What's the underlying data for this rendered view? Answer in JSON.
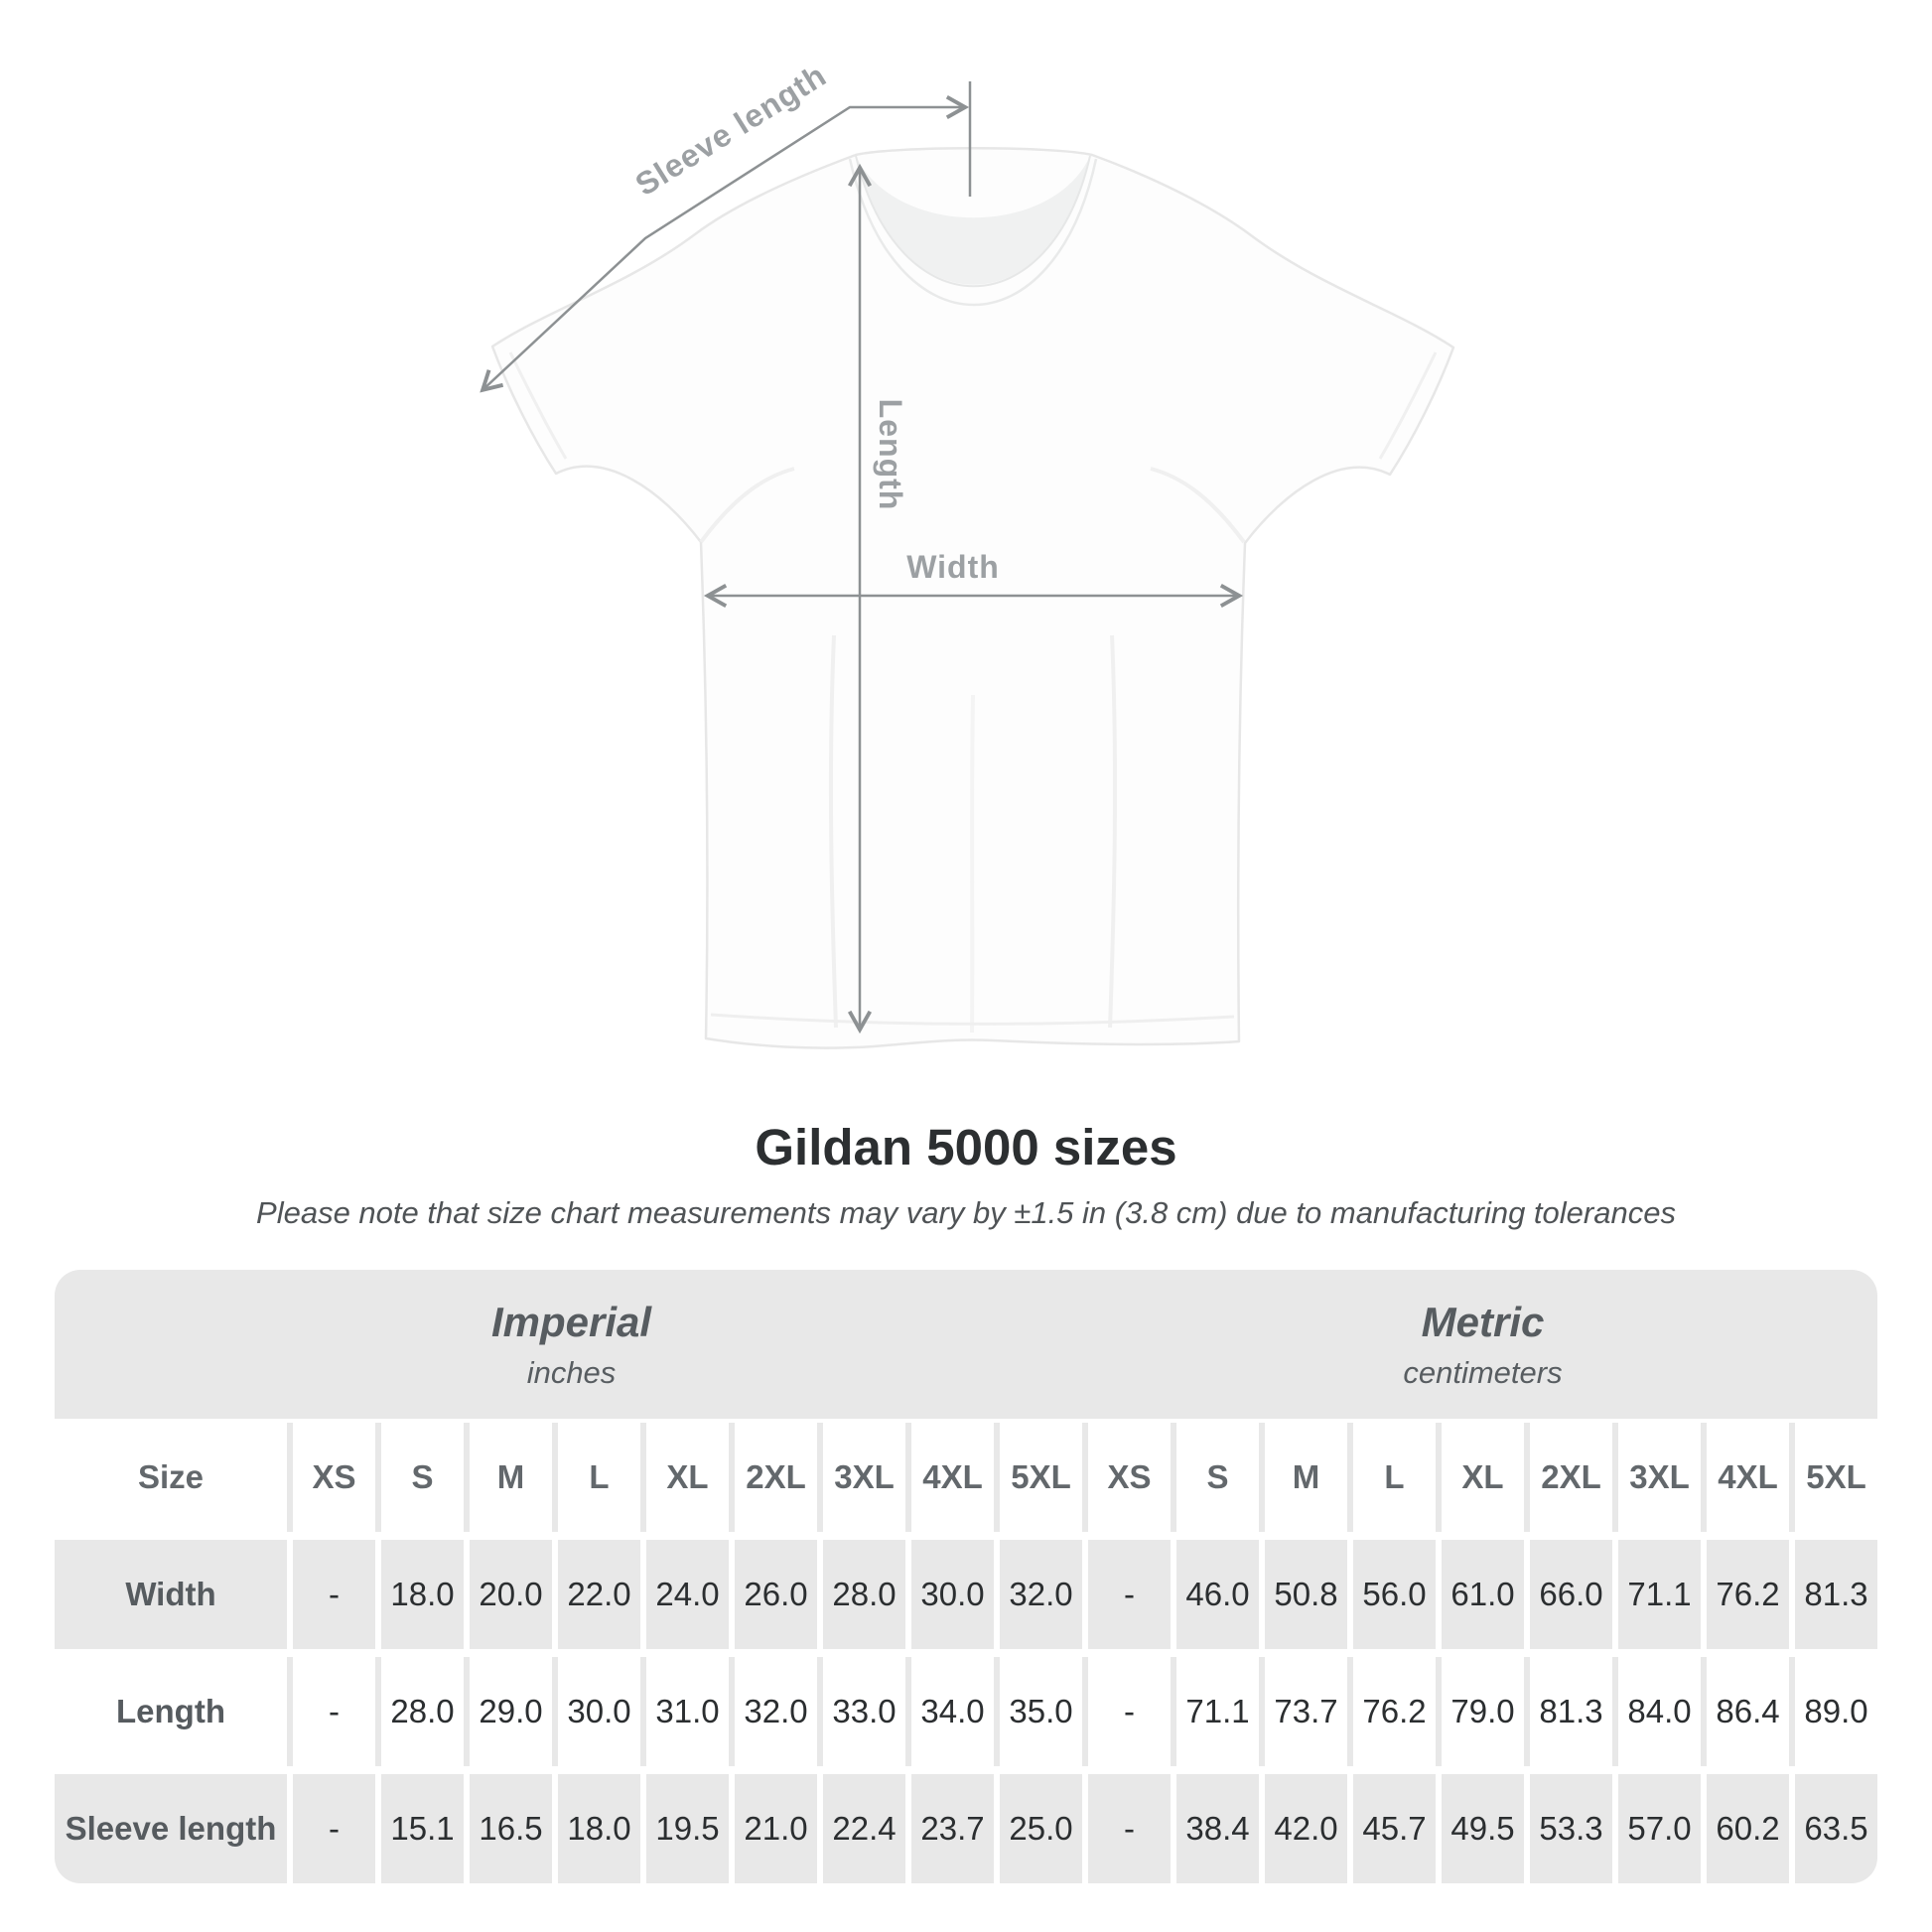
{
  "figure": {
    "labels": {
      "sleeve_length": "Sleeve length",
      "length": "Length",
      "width": "Width"
    }
  },
  "title": "Gildan 5000 sizes",
  "note": "Please note that size chart measurements may vary by ±1.5 in (3.8 cm) due to manufacturing tolerances",
  "table": {
    "unit_groups": [
      {
        "name": "Imperial",
        "unit": "inches"
      },
      {
        "name": "Metric",
        "unit": "centimeters"
      }
    ],
    "size_col_header": "Size",
    "size_headers": [
      "XS",
      "S",
      "M",
      "L",
      "XL",
      "2XL",
      "3XL",
      "4XL",
      "5XL",
      "XS",
      "S",
      "M",
      "L",
      "XL",
      "2XL",
      "3XL",
      "4XL",
      "5XL"
    ],
    "rows": [
      {
        "label": "Width",
        "values": [
          "-",
          "18.0",
          "20.0",
          "22.0",
          "24.0",
          "26.0",
          "28.0",
          "30.0",
          "32.0",
          "-",
          "46.0",
          "50.8",
          "56.0",
          "61.0",
          "66.0",
          "71.1",
          "76.2",
          "81.3"
        ]
      },
      {
        "label": "Length",
        "values": [
          "-",
          "28.0",
          "29.0",
          "30.0",
          "31.0",
          "32.0",
          "33.0",
          "34.0",
          "35.0",
          "-",
          "71.1",
          "73.7",
          "76.2",
          "79.0",
          "81.3",
          "84.0",
          "86.4",
          "89.0"
        ]
      },
      {
        "label": "Sleeve length",
        "values": [
          "-",
          "15.1",
          "16.5",
          "18.0",
          "19.5",
          "21.0",
          "22.4",
          "23.7",
          "25.0",
          "-",
          "38.4",
          "42.0",
          "45.7",
          "49.5",
          "53.3",
          "57.0",
          "60.2",
          "63.5"
        ]
      }
    ]
  },
  "colors": {
    "table_gray": "#e8e8e8",
    "number_text": "#2b2e30",
    "header_text": "#63686c",
    "arrow_gray": "#8d9193",
    "figure_label_gray": "#9ca0a3"
  }
}
